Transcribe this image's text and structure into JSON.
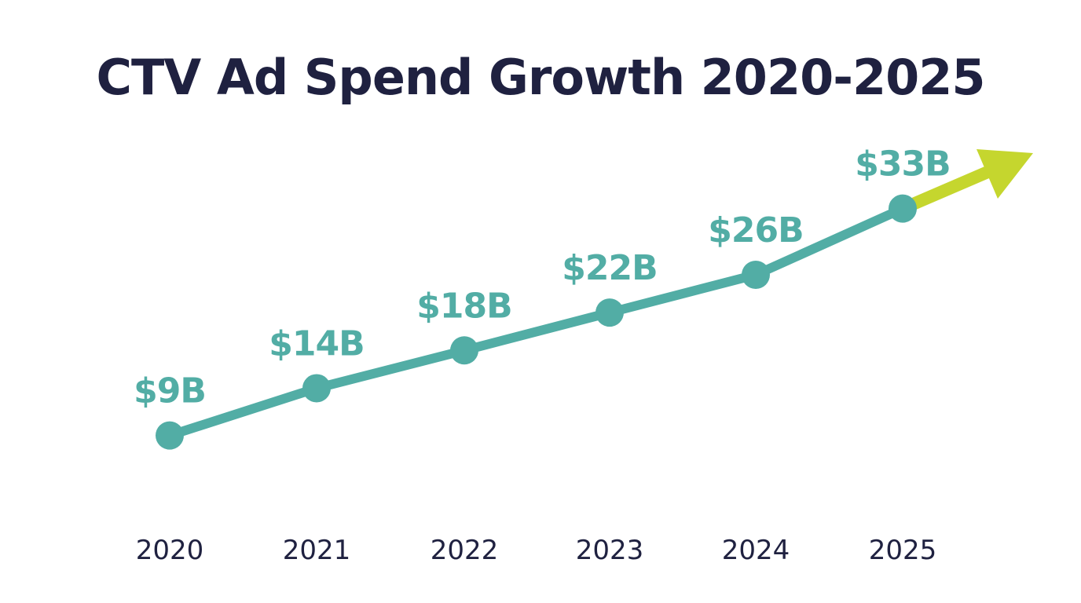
{
  "chart_data": {
    "type": "line",
    "title": "CTV Ad Spend Growth 2020-2025",
    "categories": [
      "2020",
      "2021",
      "2022",
      "2023",
      "2024",
      "2025"
    ],
    "values": [
      9,
      14,
      18,
      22,
      26,
      33
    ],
    "data_labels": [
      "$9B",
      "$14B",
      "$18B",
      "$22B",
      "$26B",
      "$33B"
    ],
    "unit": "$B",
    "grid": false,
    "trend_arrow": true,
    "colors": {
      "line": "#52ada5",
      "arrow": "#c5d62e",
      "title": "#1f2140",
      "axis_text": "#1f2140"
    }
  }
}
